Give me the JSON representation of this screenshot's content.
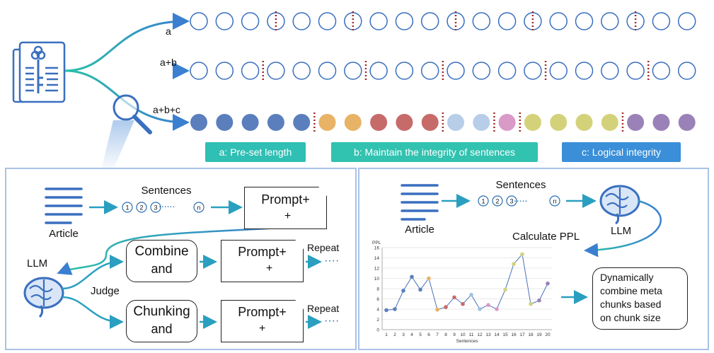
{
  "top": {
    "row_labels": [
      "a",
      "a+b",
      "a+b+c"
    ],
    "legend": [
      {
        "label": "a: Pre-set length",
        "color": "#2fbfb4"
      },
      {
        "label": "b: Maintain the integrity of sentences",
        "color": "#31c2b0"
      },
      {
        "label": "c: Logical integrity",
        "color": "#3a8fd8"
      }
    ]
  },
  "left_panel": {
    "article_label": "Article",
    "sentences_label": "Sentences",
    "sentence_nums": [
      "1",
      "2",
      "3"
    ],
    "ellipsis": "......",
    "n_label": "n",
    "prompt_label": "Prompt+",
    "plus": "+",
    "llm_label": "LLM",
    "judge_label": "Judge",
    "combine_title": "Combine",
    "and_text": "and",
    "chunking_title": "Chunking",
    "repeat_label": "Repeat",
    "dots": "····"
  },
  "right_panel": {
    "article_label": "Article",
    "sentences_label": "Sentences",
    "ellipsis": "......",
    "n_label": "n",
    "llm_label": "LLM",
    "calc_label": "Calculate PPL",
    "result_text": [
      "Dynamically",
      "combine meta",
      "chunks based",
      "on chunk size"
    ]
  },
  "chart_data": {
    "type": "line",
    "xlabel": "Sentences",
    "ylabel": "PPL",
    "ylim": [
      0,
      16
    ],
    "yticks": [
      0,
      2,
      4,
      6,
      8,
      10,
      12,
      14,
      16
    ],
    "x": [
      1,
      2,
      3,
      4,
      5,
      6,
      7,
      8,
      9,
      10,
      11,
      12,
      13,
      14,
      15,
      16,
      17,
      18,
      19,
      20
    ],
    "values": [
      3.8,
      4.0,
      7.6,
      10.3,
      7.8,
      10.0,
      3.9,
      4.4,
      6.3,
      5.0,
      6.8,
      4.0,
      4.8,
      4.0,
      7.8,
      12.8,
      14.7,
      5.0,
      5.7,
      9.0
    ],
    "point_colors": [
      "#5b7fbd",
      "#5b7fbd",
      "#5b7fbd",
      "#5b7fbd",
      "#5b7fbd",
      "#e8b366",
      "#e8b366",
      "#c76a6a",
      "#c76a6a",
      "#c76a6a",
      "#9fc2e3",
      "#9fc2e3",
      "#d99ac7",
      "#d99ac7",
      "#d3d27a",
      "#d3d27a",
      "#d3d27a",
      "#d3d27a",
      "#9a82b8",
      "#9a82b8"
    ],
    "line_color": "#4a72b8",
    "grid": true
  }
}
